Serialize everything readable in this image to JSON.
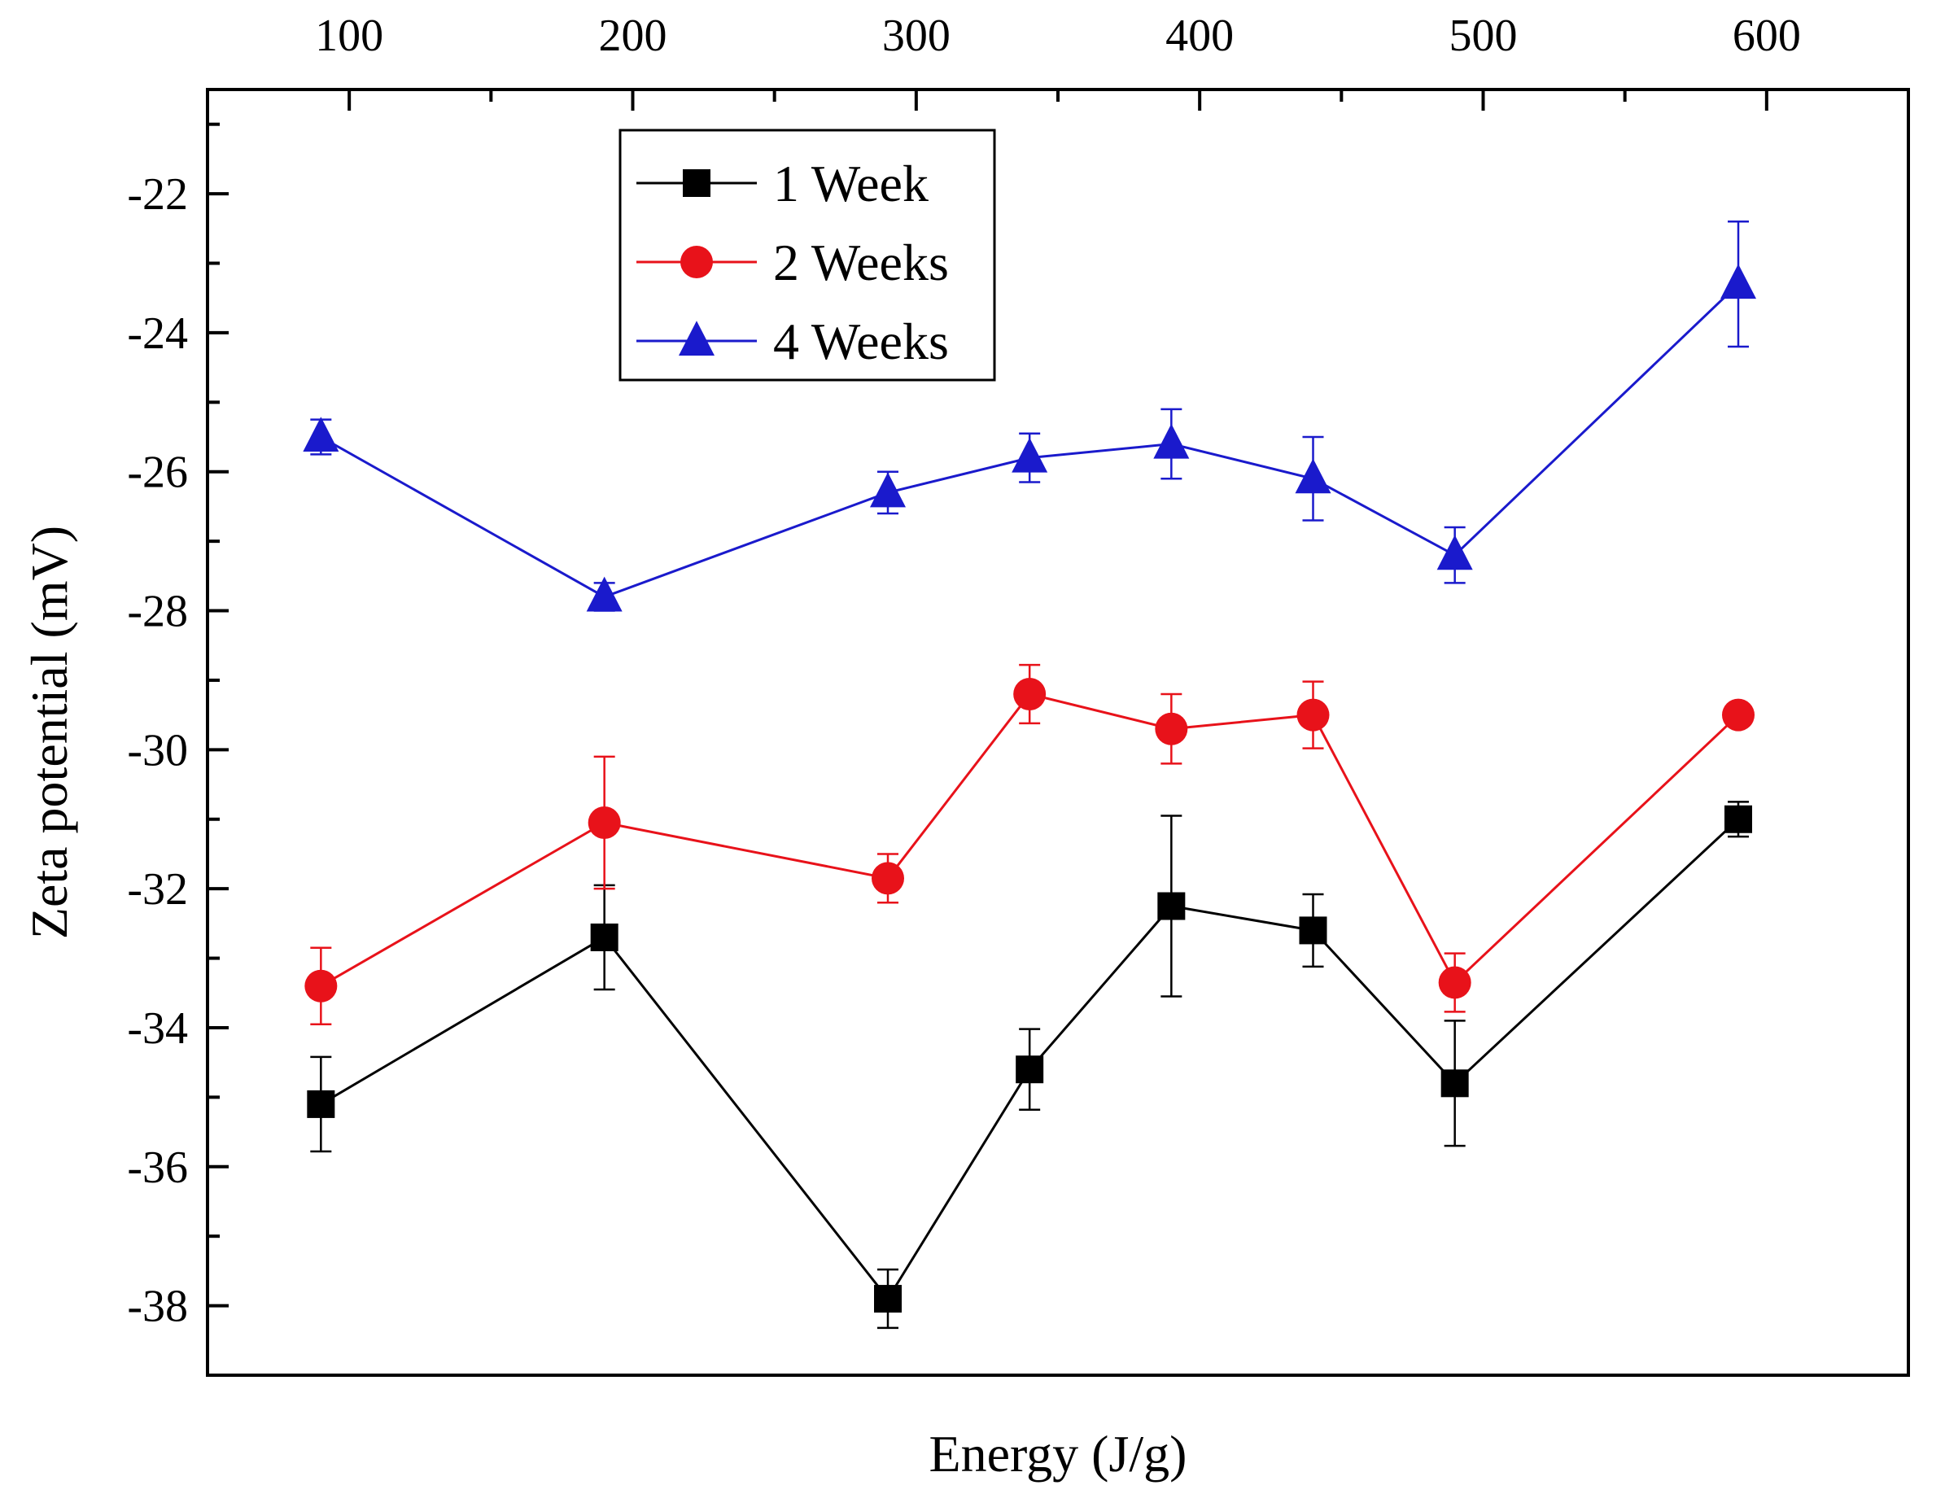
{
  "chart_data": {
    "type": "line",
    "title": "",
    "xlabel": "Energy (J/g)",
    "ylabel": "Zeta potential (mV)",
    "xlim": [
      50,
      650
    ],
    "ylim": [
      -39,
      -20.5
    ],
    "x_ticks": [
      100,
      200,
      300,
      400,
      500,
      600
    ],
    "x_tick_labels": [
      "100",
      "200",
      "300",
      "400",
      "500",
      "600"
    ],
    "x_minor_ticks": [
      150,
      250,
      350,
      450,
      550
    ],
    "y_ticks": [
      -38,
      -36,
      -34,
      -32,
      -30,
      -28,
      -26,
      -24,
      -22
    ],
    "y_tick_labels": [
      "-38",
      "-36",
      "-34",
      "-32",
      "-30",
      "-28",
      "-26",
      "-24",
      "-22"
    ],
    "y_minor_ticks": [
      -37,
      -35,
      -33,
      -31,
      -29,
      -27,
      -25,
      -23,
      -21
    ],
    "grid": false,
    "legend_position": "top-center",
    "x_axis_position": "top",
    "x": [
      90,
      190,
      290,
      340,
      390,
      440,
      490,
      590
    ],
    "series": [
      {
        "name": "1 Week",
        "color": "#000000",
        "marker": "square",
        "values": [
          -35.1,
          -32.7,
          -37.9,
          -34.6,
          -32.25,
          -32.6,
          -34.8,
          -31.0
        ],
        "errors": [
          0.68,
          0.75,
          0.42,
          0.58,
          1.3,
          0.52,
          0.9,
          0.25
        ]
      },
      {
        "name": "2 Weeks",
        "color": "#e8121a",
        "marker": "circle",
        "values": [
          -33.4,
          -31.05,
          -31.85,
          -29.2,
          -29.7,
          -29.5,
          -33.35,
          -29.5
        ],
        "errors": [
          0.55,
          0.95,
          0.35,
          0.42,
          0.5,
          0.48,
          0.42,
          0.1
        ]
      },
      {
        "name": "4 Weeks",
        "color": "#1a1acc",
        "marker": "triangle",
        "values": [
          -25.5,
          -27.8,
          -26.3,
          -25.8,
          -25.6,
          -26.1,
          -27.2,
          -23.3
        ],
        "errors": [
          0.25,
          0.2,
          0.3,
          0.35,
          0.5,
          0.6,
          0.4,
          0.9
        ]
      }
    ]
  }
}
